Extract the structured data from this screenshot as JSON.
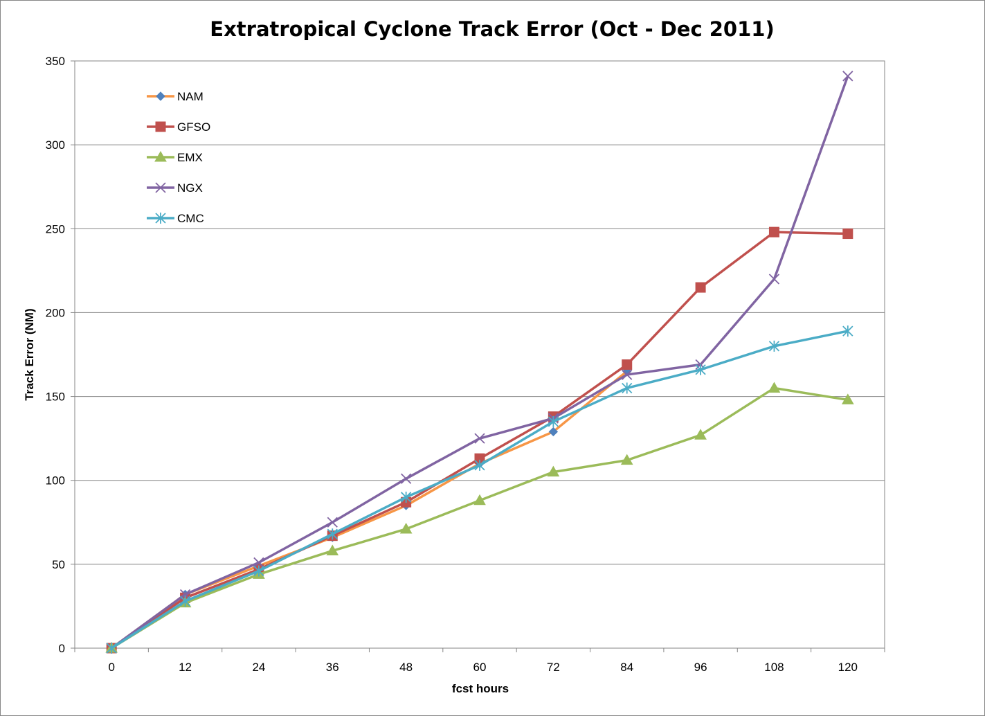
{
  "chart_data": {
    "type": "line",
    "title": "Extratropical Cyclone Track Error (Oct - Dec 2011)",
    "xlabel": "fcst hours",
    "ylabel": "Track Error  (NM)",
    "categories": [
      "0",
      "12",
      "24",
      "36",
      "48",
      "60",
      "72",
      "84",
      "96",
      "108",
      "120"
    ],
    "y_ticks": [
      "0",
      "50",
      "100",
      "150",
      "200",
      "250",
      "300",
      "350"
    ],
    "ylim": [
      0,
      350
    ],
    "grid": "horizontal",
    "legend_position": "top-left inside",
    "series": [
      {
        "name": "NAM",
        "color": "#F79646",
        "marker": "diamond",
        "marker_color": "#4F81BD",
        "values": [
          0,
          32,
          49,
          66,
          85,
          110,
          129,
          165,
          null,
          null,
          null
        ]
      },
      {
        "name": "GFSO",
        "color": "#C0504D",
        "marker": "square",
        "marker_color": "#C0504D",
        "values": [
          0,
          30,
          47,
          67,
          87,
          113,
          138,
          169,
          215,
          248,
          247
        ]
      },
      {
        "name": "EMX",
        "color": "#9BBB59",
        "marker": "triangle",
        "marker_color": "#9BBB59",
        "values": [
          0,
          27,
          44,
          58,
          71,
          88,
          105,
          112,
          127,
          155,
          148
        ]
      },
      {
        "name": "NGX",
        "color": "#8064A2",
        "marker": "x",
        "marker_color": "#8064A2",
        "values": [
          0,
          32,
          51,
          75,
          101,
          125,
          137,
          163,
          169,
          220,
          341
        ]
      },
      {
        "name": "CMC",
        "color": "#4BACC6",
        "marker": "asterisk",
        "marker_color": "#4BACC6",
        "values": [
          0,
          28,
          46,
          68,
          90,
          109,
          135,
          155,
          166,
          180,
          189
        ]
      }
    ]
  }
}
